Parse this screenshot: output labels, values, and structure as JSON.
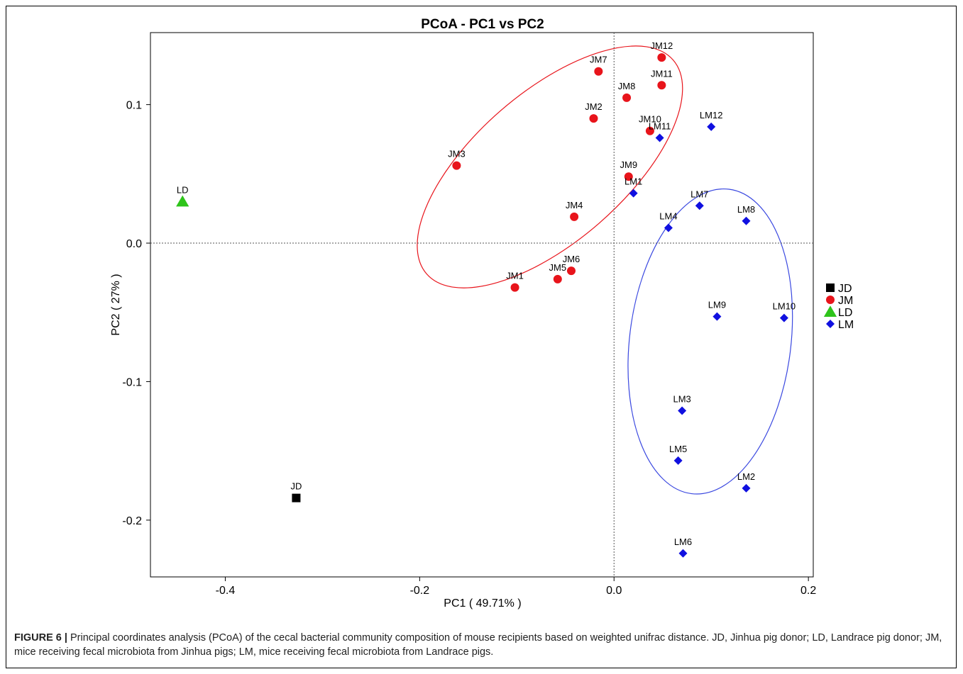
{
  "caption": {
    "label": "FIGURE 6 |",
    "text": " Principal coordinates analysis (PCoA) of the cecal bacterial community composition of mouse recipients based on weighted unifrac distance. JD, Jinhua pig donor; LD, Landrace pig donor; JM, mice receiving fecal microbiota from Jinhua pigs; LM, mice receiving fecal microbiota from Landrace pigs."
  },
  "colors": {
    "JD": "#000000",
    "JM": "#e8141b",
    "LD": "#2ec41a",
    "LM": "#1010e0",
    "ellipse_JM": "#e8141b",
    "ellipse_LM": "#3a48e0"
  },
  "chart_data": {
    "type": "scatter",
    "title": "PCoA - PC1 vs PC2",
    "xlabel": "PC1 ( 49.71% )",
    "ylabel": "PC2 ( 27% )",
    "xlim": [
      -0.477,
      0.205
    ],
    "ylim": [
      -0.241,
      0.152
    ],
    "xticks": [
      -0.4,
      -0.2,
      0.0,
      0.2
    ],
    "xtick_labels": [
      "-0.4",
      "-0.2",
      "0.0",
      "0.2"
    ],
    "yticks": [
      -0.2,
      -0.1,
      0.0,
      0.1
    ],
    "ytick_labels": [
      "-0.2",
      "-0.1",
      "0.0",
      "0.1"
    ],
    "reference_lines": [
      0.0,
      0.0
    ],
    "grid": false,
    "legend_position": "right",
    "legend": [
      {
        "name": "JD",
        "marker": "square"
      },
      {
        "name": "JM",
        "marker": "circle"
      },
      {
        "name": "LD",
        "marker": "triangle"
      },
      {
        "name": "LM",
        "marker": "diamond"
      }
    ],
    "series": [
      {
        "name": "JD",
        "marker": "square",
        "points": [
          {
            "label": "JD",
            "x": -0.327,
            "y": -0.184
          }
        ]
      },
      {
        "name": "JM",
        "marker": "circle",
        "points": [
          {
            "label": "JM1",
            "x": -0.102,
            "y": -0.032
          },
          {
            "label": "JM2",
            "x": -0.021,
            "y": 0.09
          },
          {
            "label": "JM3",
            "x": -0.162,
            "y": 0.056
          },
          {
            "label": "JM4",
            "x": -0.041,
            "y": 0.019
          },
          {
            "label": "JM5",
            "x": -0.058,
            "y": -0.026
          },
          {
            "label": "JM6",
            "x": -0.044,
            "y": -0.02
          },
          {
            "label": "JM7",
            "x": -0.016,
            "y": 0.124
          },
          {
            "label": "JM8",
            "x": 0.013,
            "y": 0.105
          },
          {
            "label": "JM9",
            "x": 0.015,
            "y": 0.048
          },
          {
            "label": "JM10",
            "x": 0.037,
            "y": 0.081
          },
          {
            "label": "JM11",
            "x": 0.049,
            "y": 0.114
          },
          {
            "label": "JM12",
            "x": 0.049,
            "y": 0.134
          }
        ]
      },
      {
        "name": "LD",
        "marker": "triangle",
        "points": [
          {
            "label": "LD",
            "x": -0.444,
            "y": 0.03
          }
        ]
      },
      {
        "name": "LM",
        "marker": "diamond",
        "points": [
          {
            "label": "LM1",
            "x": 0.02,
            "y": 0.036
          },
          {
            "label": "LM2",
            "x": 0.136,
            "y": -0.177
          },
          {
            "label": "LM3",
            "x": 0.07,
            "y": -0.121
          },
          {
            "label": "LM4",
            "x": 0.056,
            "y": 0.011
          },
          {
            "label": "LM5",
            "x": 0.066,
            "y": -0.157
          },
          {
            "label": "LM6",
            "x": 0.071,
            "y": -0.224
          },
          {
            "label": "LM7",
            "x": 0.088,
            "y": 0.027
          },
          {
            "label": "LM8",
            "x": 0.136,
            "y": 0.016
          },
          {
            "label": "LM9",
            "x": 0.106,
            "y": -0.053
          },
          {
            "label": "LM10",
            "x": 0.175,
            "y": -0.054
          },
          {
            "label": "LM11",
            "x": 0.047,
            "y": 0.076
          },
          {
            "label": "LM12",
            "x": 0.1,
            "y": 0.084
          }
        ]
      }
    ],
    "ellipses": [
      {
        "group": "JM",
        "cx": -0.066,
        "cy": 0.055,
        "rx": 0.168,
        "ry": 0.077,
        "angle_deg": -41
      },
      {
        "group": "LM",
        "cx": 0.099,
        "cy": -0.071,
        "rx": 0.158,
        "ry": 0.083,
        "angle_deg": -83
      }
    ]
  }
}
